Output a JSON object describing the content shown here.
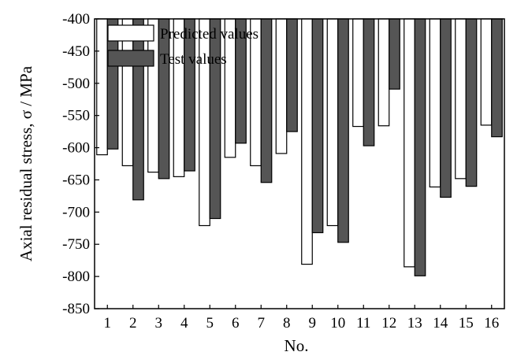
{
  "chart_data": {
    "type": "bar",
    "title": "",
    "xlabel": "No.",
    "ylabel": "Axial residual stress, σ / MPa",
    "categories": [
      "1",
      "2",
      "3",
      "4",
      "5",
      "6",
      "7",
      "8",
      "9",
      "10",
      "11",
      "12",
      "13",
      "14",
      "15",
      "16"
    ],
    "ylim": [
      -850,
      -400
    ],
    "yticks": [
      -400,
      -450,
      -500,
      -550,
      -600,
      -650,
      -700,
      -750,
      -800,
      -850
    ],
    "grid": false,
    "legend_position": "top-left",
    "series": [
      {
        "name": "Predicted values",
        "color": "#ffffff",
        "values": [
          -611,
          -628,
          -638,
          -645,
          -721,
          -615,
          -628,
          -609,
          -781,
          -721,
          -567,
          -566,
          -785,
          -661,
          -648,
          -565
        ]
      },
      {
        "name": "Test values",
        "color": "#555555",
        "values": [
          -602,
          -681,
          -648,
          -636,
          -710,
          -593,
          -654,
          -575,
          -732,
          -747,
          -597,
          -509,
          -799,
          -677,
          -660,
          -583
        ]
      }
    ]
  }
}
